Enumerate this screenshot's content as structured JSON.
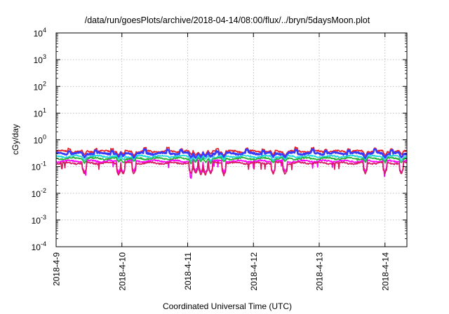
{
  "chart_data": {
    "type": "line",
    "title": "/data/run/goesPlots/archive/2018-04-14/08:00/flux/../bryn/5daysMoon.plot",
    "xlabel": "Coordinated Universal Time (UTC)",
    "ylabel": "cGy/day",
    "yscale": "log",
    "ylim": [
      0.0001,
      10000
    ],
    "xlim": [
      "2018-04-09T00:00",
      "2018-04-14T08:00"
    ],
    "grid": true,
    "legend": "none",
    "x_ticks": [
      {
        "label": "2018-4-9",
        "value": "2018-04-09"
      },
      {
        "label": "2018-4-10",
        "value": "2018-04-10"
      },
      {
        "label": "2018-4-11",
        "value": "2018-04-11"
      },
      {
        "label": "2018-4-12",
        "value": "2018-04-12"
      },
      {
        "label": "2018-4-13",
        "value": "2018-04-13"
      },
      {
        "label": "2018-4-14",
        "value": "2018-04-14"
      }
    ],
    "y_ticks": [
      {
        "base": "10",
        "exp": "-4",
        "value": 0.0001
      },
      {
        "base": "10",
        "exp": "-3",
        "value": 0.001
      },
      {
        "base": "10",
        "exp": "-2",
        "value": 0.01
      },
      {
        "base": "10",
        "exp": "-1",
        "value": 0.1
      },
      {
        "base": "10",
        "exp": "0",
        "value": 1
      },
      {
        "base": "10",
        "exp": "1",
        "value": 10
      },
      {
        "base": "10",
        "exp": "2",
        "value": 100
      },
      {
        "base": "10",
        "exp": "3",
        "value": 1000
      },
      {
        "base": "10",
        "exp": "4",
        "value": 10000
      }
    ],
    "series": [
      {
        "color": "#e8202a",
        "base": 0.37
      },
      {
        "color": "#3a3aff",
        "base": 0.31
      },
      {
        "color": "#19d5e0",
        "base": 0.24
      },
      {
        "color": "#25b035",
        "base": 0.2
      },
      {
        "color": "#ff00ff",
        "base": 0.16
      },
      {
        "color": "#d81b60",
        "base": 0.135
      }
    ],
    "dip_days": [
      0.43,
      0.95,
      1.02,
      1.18,
      2.05,
      2.12,
      2.2,
      2.27,
      2.35,
      2.55,
      3.3,
      3.48,
      4.7,
      5.0,
      5.25
    ],
    "spike_days": [
      0.2,
      0.6,
      0.85,
      1.35,
      1.7,
      1.9,
      2.45,
      2.9,
      3.15,
      3.65,
      3.9,
      4.1,
      4.45,
      4.85,
      5.1
    ]
  }
}
